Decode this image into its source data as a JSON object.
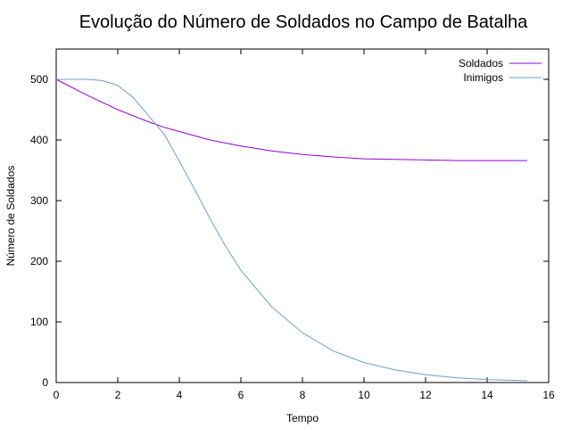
{
  "chart_data": {
    "type": "line",
    "title": "Evolução do Número de Soldados no Campo de Batalha",
    "xlabel": "Tempo",
    "ylabel": "Número de Soldados",
    "xlim": [
      0,
      16
    ],
    "ylim": [
      0,
      550
    ],
    "xticks": [
      0,
      2,
      4,
      6,
      8,
      10,
      12,
      14,
      16
    ],
    "yticks": [
      0,
      100,
      200,
      300,
      400,
      500
    ],
    "grid": false,
    "legend_position": "top-right",
    "series": [
      {
        "name": "Soldados",
        "color": "#9400d3",
        "x": [
          0,
          1,
          2,
          3,
          3.5,
          4,
          5,
          6,
          7,
          8,
          9,
          10,
          11,
          12,
          13,
          14,
          15.3
        ],
        "y": [
          500,
          474,
          450,
          430,
          421,
          414,
          400,
          390,
          382,
          376,
          372,
          369,
          368,
          367,
          366,
          366,
          366
        ]
      },
      {
        "name": "Inimigos",
        "color": "#6e9fd0",
        "x": [
          0,
          0.5,
          1,
          1.5,
          2,
          2.5,
          3,
          3.5,
          4,
          4.5,
          5,
          5.5,
          6,
          7,
          8,
          9,
          10,
          11,
          12,
          13,
          14,
          15.3
        ],
        "y": [
          500,
          500,
          500,
          498,
          490,
          470,
          440,
          410,
          365,
          318,
          270,
          225,
          185,
          125,
          82,
          52,
          33,
          21,
          13,
          8,
          5,
          3
        ]
      }
    ]
  }
}
